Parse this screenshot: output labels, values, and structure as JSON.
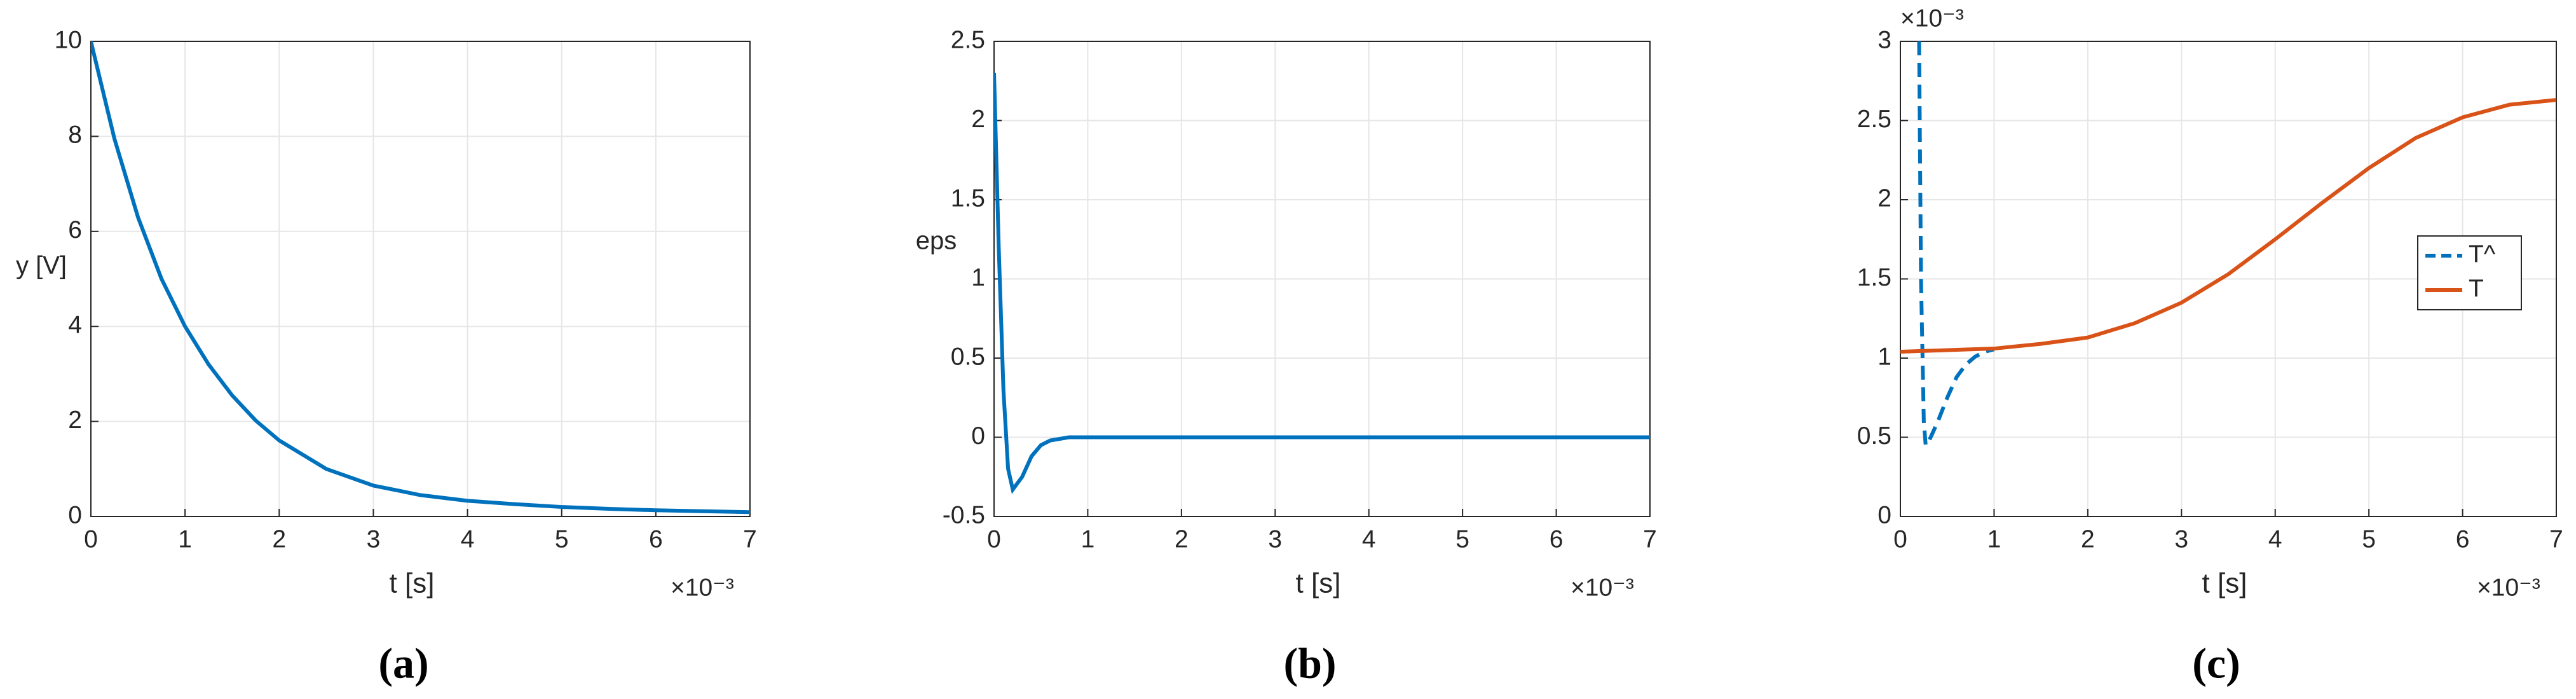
{
  "chart_data": [
    {
      "type": "line",
      "panel_label": "(a)",
      "xlabel": "t [s]",
      "ylabel": "y [V]",
      "x_multiplier": "×10⁻³",
      "xlim": [
        0,
        7
      ],
      "xticks": [
        0,
        1,
        2,
        3,
        4,
        5,
        6,
        7
      ],
      "ylim": [
        0,
        10
      ],
      "yticks": [
        0,
        2,
        4,
        6,
        8,
        10
      ],
      "grid": true,
      "series": [
        {
          "color": "#0072bd",
          "style": "solid",
          "x": [
            0,
            0.25,
            0.5,
            0.75,
            1,
            1.25,
            1.5,
            1.75,
            2,
            2.5,
            3,
            3.5,
            4,
            4.5,
            5,
            5.5,
            6,
            6.5,
            7
          ],
          "values": [
            10,
            7.95,
            6.3,
            5.0,
            4.0,
            3.2,
            2.55,
            2.02,
            1.6,
            1.0,
            0.65,
            0.45,
            0.33,
            0.26,
            0.2,
            0.16,
            0.13,
            0.11,
            0.09
          ]
        }
      ]
    },
    {
      "type": "line",
      "panel_label": "(b)",
      "xlabel": "t [s]",
      "ylabel": "eps",
      "x_multiplier": "×10⁻³",
      "xlim": [
        0,
        7
      ],
      "xticks": [
        0,
        1,
        2,
        3,
        4,
        5,
        6,
        7
      ],
      "ylim": [
        -0.5,
        2.5
      ],
      "yticks": [
        -0.5,
        0,
        0.5,
        1,
        1.5,
        2,
        2.5
      ],
      "grid": true,
      "series": [
        {
          "color": "#0072bd",
          "style": "solid",
          "x": [
            0,
            0.05,
            0.1,
            0.15,
            0.2,
            0.3,
            0.4,
            0.5,
            0.6,
            0.8,
            1,
            2,
            3,
            4,
            5,
            6,
            7
          ],
          "values": [
            2.3,
            1.2,
            0.3,
            -0.2,
            -0.33,
            -0.25,
            -0.12,
            -0.05,
            -0.02,
            0,
            0,
            0,
            0,
            0,
            0,
            0,
            0
          ]
        }
      ]
    },
    {
      "type": "line",
      "panel_label": "(c)",
      "xlabel": "t [s]",
      "x_multiplier": "×10⁻³",
      "y_multiplier": "×10⁻³",
      "xlim": [
        0,
        7
      ],
      "xticks": [
        0,
        1,
        2,
        3,
        4,
        5,
        6,
        7
      ],
      "ylim": [
        0,
        3
      ],
      "yticks": [
        0,
        0.5,
        1,
        1.5,
        2,
        2.5,
        3
      ],
      "grid": true,
      "legend": "right",
      "series": [
        {
          "name": "T^",
          "color": "#0072bd",
          "style": "dashed",
          "x": [
            0.2,
            0.22,
            0.25,
            0.27,
            0.3,
            0.4,
            0.5,
            0.6,
            0.7,
            0.8,
            0.9,
            1.0
          ],
          "values": [
            3,
            1.5,
            0.6,
            0.45,
            0.47,
            0.6,
            0.75,
            0.88,
            0.96,
            1.01,
            1.04,
            1.055
          ]
        },
        {
          "name": "T",
          "color": "#d95319",
          "style": "solid",
          "x": [
            0,
            0.5,
            1,
            1.5,
            2,
            2.5,
            3,
            3.5,
            4,
            4.5,
            5,
            5.5,
            6,
            6.5,
            7
          ],
          "values": [
            1.04,
            1.05,
            1.06,
            1.09,
            1.13,
            1.22,
            1.35,
            1.53,
            1.75,
            1.98,
            2.2,
            2.39,
            2.52,
            2.6,
            2.63
          ]
        }
      ]
    }
  ]
}
